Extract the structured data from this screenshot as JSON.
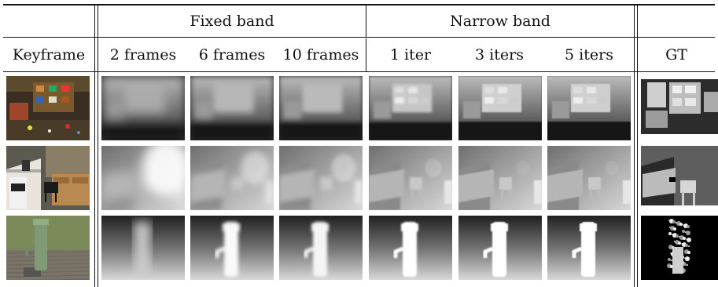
{
  "table": {
    "group_headers": {
      "fixed": "Fixed band",
      "narrow": "Narrow band"
    },
    "columns": {
      "keyframe": "Keyframe",
      "f2": "2 frames",
      "f6": "6 frames",
      "f10": "10 frames",
      "i1": "1 iter",
      "i3": "3 iters",
      "i5": "5 iters",
      "gt": "GT"
    },
    "rows": [
      {
        "scene": "cluttered shelf room"
      },
      {
        "scene": "kitchen with chair"
      },
      {
        "scene": "outdoor water pump"
      }
    ]
  },
  "colors": {
    "rule": "#111111",
    "background": "#ffffff"
  }
}
